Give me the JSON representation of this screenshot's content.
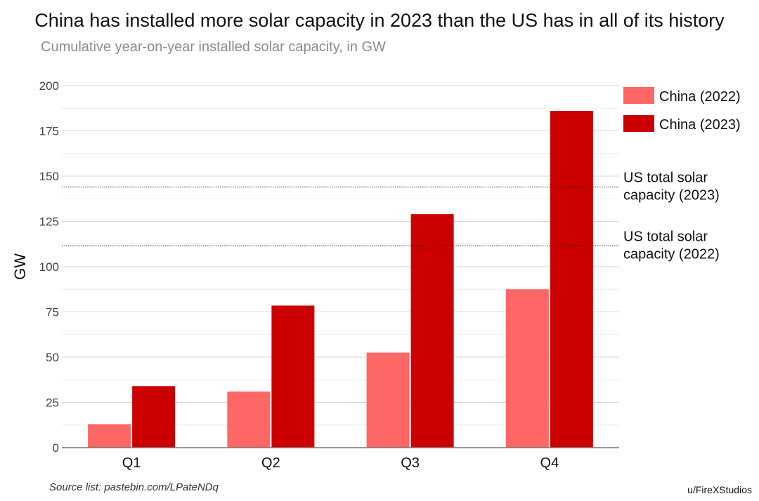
{
  "chart_data": {
    "type": "bar",
    "title": "China has installed more solar capacity in 2023 than the US has in all of its history",
    "subtitle": "Cumulative year-on-year installed solar capacity, in GW",
    "xlabel": "",
    "ylabel": "GW",
    "ylim": [
      0,
      200
    ],
    "yticks": [
      "0",
      "25",
      "50",
      "75",
      "100",
      "125",
      "150",
      "175",
      "200"
    ],
    "categories": [
      "Q1",
      "Q2",
      "Q3",
      "Q4"
    ],
    "series": [
      {
        "name": "China (2022)",
        "color": "#ff6666",
        "values": [
          13,
          31,
          52.5,
          87.5
        ]
      },
      {
        "name": "China (2023)",
        "color": "#cc0000",
        "values": [
          34,
          78.5,
          129,
          186
        ]
      }
    ],
    "reference_lines": [
      {
        "label_line1": "US total solar",
        "label_line2": "capacity (2023)",
        "value": 144
      },
      {
        "label_line1": "US total solar",
        "label_line2": "capacity (2022)",
        "value": 111.5
      }
    ],
    "legend_position": "top-right",
    "grid": true
  },
  "footer": {
    "source": "Source list: pastebin.com/LPateNDq",
    "credit": "u/FireXStudios"
  }
}
